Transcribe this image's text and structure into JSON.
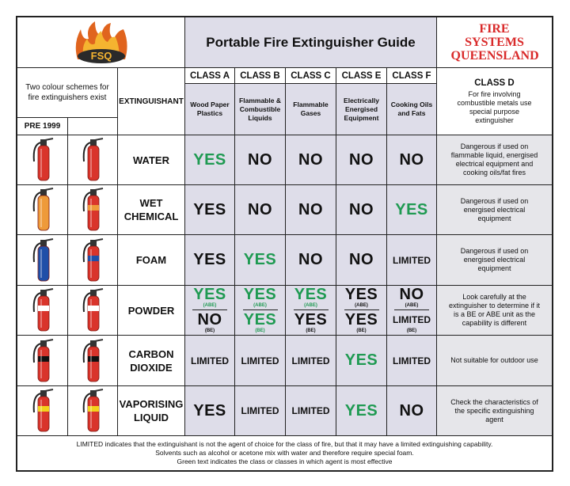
{
  "header": {
    "logo_text": "FSQ",
    "title": "Portable Fire Extinguisher Guide",
    "brand": "FIRE SYSTEMS QUEENSLAND"
  },
  "left_header": {
    "note": "Two colour schemes for fire extinguishers exist",
    "pre": "PRE 1999",
    "extinguishant": "EXTINGUISHANT"
  },
  "classes": [
    {
      "label": "CLASS A",
      "desc": "Wood Paper Plastics"
    },
    {
      "label": "CLASS B",
      "desc": "Flammable & Combustible Liquids"
    },
    {
      "label": "CLASS C",
      "desc": "Flammable Gases"
    },
    {
      "label": "CLASS E",
      "desc": "Electrically Energised Equipment"
    },
    {
      "label": "CLASS F",
      "desc": "Cooking Oils and Fats"
    }
  ],
  "class_d": {
    "label": "CLASS D",
    "desc": "For fire involving combustible metals use special purpose extinguisher"
  },
  "rows": [
    {
      "agent": "WATER",
      "pre_color": "#d9342b",
      "band_color": null,
      "cells": [
        {
          "text": "YES",
          "green": true
        },
        {
          "text": "NO",
          "green": false
        },
        {
          "text": "NO",
          "green": false
        },
        {
          "text": "NO",
          "green": false
        },
        {
          "text": "NO",
          "green": false
        }
      ],
      "note": "Dangerous if used on flammable liquid, energised electrical equipment and cooking oils/fat fires"
    },
    {
      "agent": "WET CHEMICAL",
      "pre_color": "#ee9a3a",
      "band_color": "#ee9a3a",
      "cells": [
        {
          "text": "YES",
          "green": false
        },
        {
          "text": "NO",
          "green": false
        },
        {
          "text": "NO",
          "green": false
        },
        {
          "text": "NO",
          "green": false
        },
        {
          "text": "YES",
          "green": true
        }
      ],
      "note": "Dangerous if used on energised electrical equipment"
    },
    {
      "agent": "FOAM",
      "pre_color": "#1f4fa8",
      "band_color": "#1f4fa8",
      "cells": [
        {
          "text": "YES",
          "green": false
        },
        {
          "text": "YES",
          "green": true
        },
        {
          "text": "NO",
          "green": false
        },
        {
          "text": "NO",
          "green": false
        },
        {
          "text": "LIMITED",
          "green": false
        }
      ],
      "note": "Dangerous if used on energised electrical equipment"
    },
    {
      "agent": "POWDER",
      "pre_color": "#d9342b",
      "band_color": "#ffffff",
      "cells": [
        {
          "top": "YES",
          "top_sub": "(ABE)",
          "top_green": true,
          "bottom": "NO",
          "bottom_sub": "(BE)",
          "bottom_green": false
        },
        {
          "top": "YES",
          "top_sub": "(ABE)",
          "top_green": true,
          "bottom": "YES",
          "bottom_sub": "(BE)",
          "bottom_green": true
        },
        {
          "top": "YES",
          "top_sub": "(ABE)",
          "top_green": true,
          "bottom": "YES",
          "bottom_sub": "(BE)",
          "bottom_green": false
        },
        {
          "top": "YES",
          "top_sub": "(ABE)",
          "top_green": false,
          "bottom": "YES",
          "bottom_sub": "(BE)",
          "bottom_green": false
        },
        {
          "top": "NO",
          "top_sub": "(ABE)",
          "top_green": false,
          "bottom": "LIMITED",
          "bottom_sub": "(BE)",
          "bottom_green": false
        }
      ],
      "note": "Look carefully at the extinguisher to determine if it is a BE or ABE unit as the capability is different"
    },
    {
      "agent": "CARBON DIOXIDE",
      "pre_color": "#d9342b",
      "band_color": "#111111",
      "cells": [
        {
          "text": "LIMITED",
          "green": false
        },
        {
          "text": "LIMITED",
          "green": false
        },
        {
          "text": "LIMITED",
          "green": false
        },
        {
          "text": "YES",
          "green": true
        },
        {
          "text": "LIMITED",
          "green": false
        }
      ],
      "note": "Not suitable for outdoor use"
    },
    {
      "agent": "VAPORISING LIQUID",
      "pre_color": "#d9342b",
      "band_color": "#f2d21b",
      "cells": [
        {
          "text": "YES",
          "green": false
        },
        {
          "text": "LIMITED",
          "green": false
        },
        {
          "text": "LIMITED",
          "green": false
        },
        {
          "text": "YES",
          "green": true
        },
        {
          "text": "NO",
          "green": false
        }
      ],
      "note": "Check the characteristics of the specific extinguishing agent"
    }
  ],
  "footer": [
    "LIMITED indicates that the extinguishant is not the agent of choice for the class of fire, but that it may have a limited extinguishing capability.",
    "Solvents such as alcohol or acetone mix with water and therefore require special foam.",
    "Green text indicates the class or classes in which agent is most effective"
  ]
}
